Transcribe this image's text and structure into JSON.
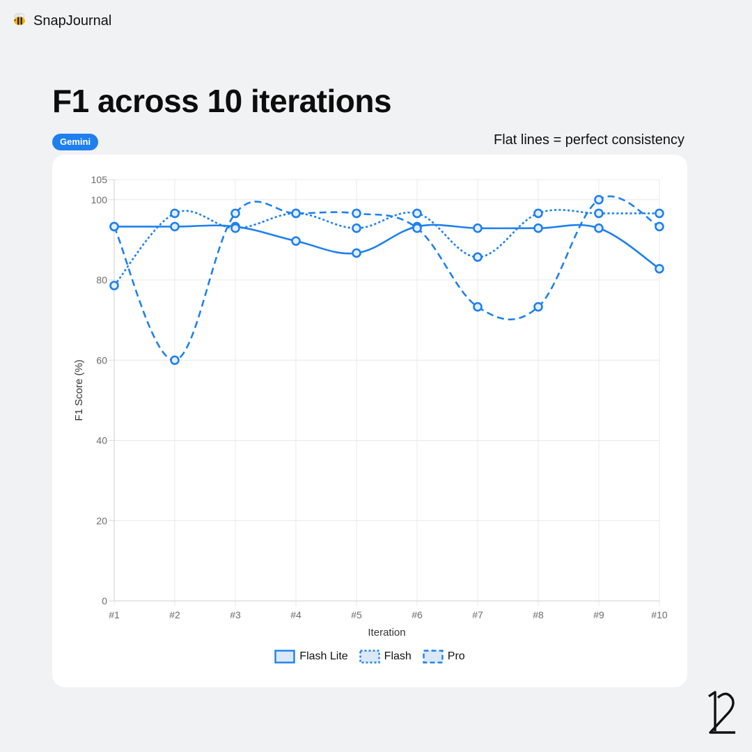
{
  "brand": {
    "name": "SnapJournal",
    "logo_icon": "bee-icon"
  },
  "page": {
    "title": "F1 across 10 iterations",
    "badge": "Gemini",
    "caption": "Flat lines = perfect consistency"
  },
  "colors": {
    "accent": "#1e80ee",
    "background": "#f1f2f4",
    "card": "#ffffff"
  },
  "chart_data": {
    "type": "line",
    "title": "",
    "xlabel": "Iteration",
    "ylabel": "F1 Score (%)",
    "categories": [
      "#1",
      "#2",
      "#3",
      "#4",
      "#5",
      "#6",
      "#7",
      "#8",
      "#9",
      "#10"
    ],
    "ylim": [
      0,
      105
    ],
    "yticks": [
      0,
      20,
      40,
      60,
      80,
      100,
      105
    ],
    "grid": true,
    "legend_position": "bottom",
    "series": [
      {
        "name": "Flash Lite",
        "dash": "solid",
        "values": [
          93.3,
          93.3,
          93.3,
          89.7,
          86.7,
          93.3,
          92.9,
          92.9,
          92.9,
          82.8
        ]
      },
      {
        "name": "Flash",
        "dash": "dotted",
        "values": [
          78.6,
          96.6,
          92.9,
          96.6,
          92.9,
          96.6,
          85.7,
          96.6,
          96.6,
          96.6
        ]
      },
      {
        "name": "Pro",
        "dash": "dashed",
        "values": [
          93.3,
          60.0,
          96.6,
          96.6,
          96.6,
          92.9,
          73.3,
          73.3,
          100.0,
          93.3
        ]
      }
    ]
  },
  "footer": {
    "logo_icon": "monogram-logo-icon"
  }
}
